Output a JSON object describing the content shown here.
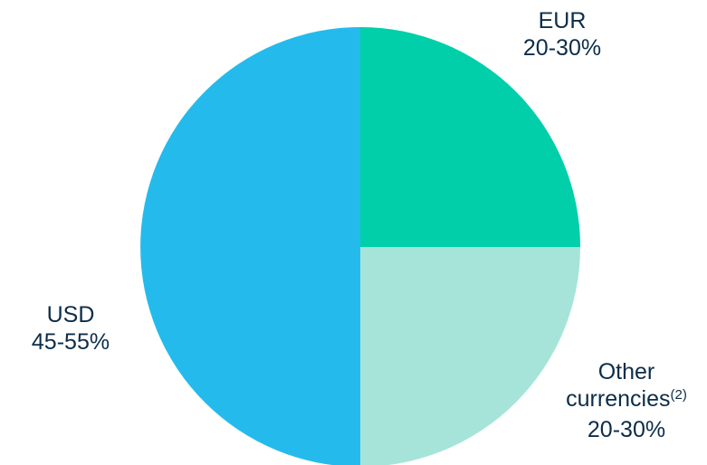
{
  "chart_data": {
    "type": "pie",
    "slices": [
      {
        "label": "EUR",
        "range_label": "20-30%",
        "value": 25,
        "color": "#00cfaa"
      },
      {
        "label": "Other currencies",
        "footnote": "(2)",
        "range_label": "20-30%",
        "value": 25,
        "color": "#a6e4da"
      },
      {
        "label": "USD",
        "range_label": "45-55%",
        "value": 50,
        "color": "#24bbec"
      }
    ],
    "start_angle_deg": 0,
    "direction": "clockwise",
    "label_color": "#0c2d48"
  }
}
